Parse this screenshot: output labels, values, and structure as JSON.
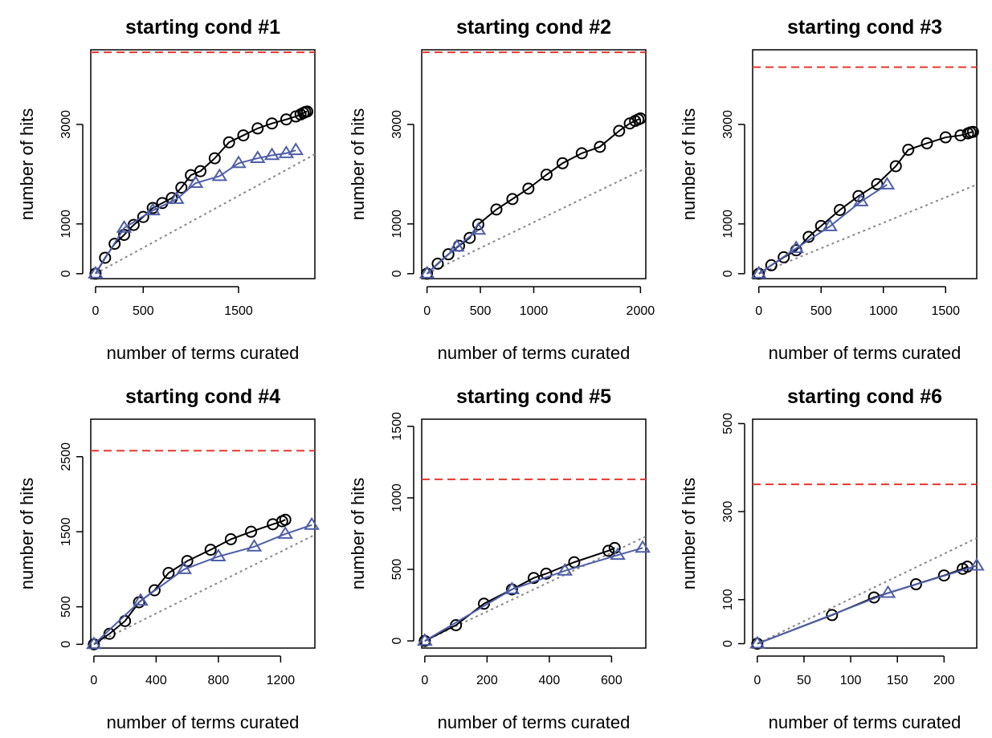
{
  "figure": {
    "colors": {
      "curated": "#000000",
      "alternate": "#4f5ea8",
      "reference": "#e8362f",
      "baseline": "#888888"
    },
    "marker_icons": {
      "curated": "circle-marker-icon",
      "alternate": "triangle-marker-icon"
    }
  },
  "chart_data": [
    {
      "type": "line",
      "title": "starting cond #1",
      "xlabel": "number of terms curated",
      "ylabel": "number of hits",
      "xlim": [
        -50,
        2300
      ],
      "ylim": [
        -100,
        4500
      ],
      "xticks": [
        0,
        500,
        1500
      ],
      "yticks": [
        0,
        1000,
        3000
      ],
      "reference_line": 4450,
      "baseline": {
        "x": [
          0,
          2300
        ],
        "y": [
          0,
          2400
        ]
      },
      "series": [
        {
          "marker": "circle",
          "x": [
            0,
            100,
            200,
            300,
            400,
            500,
            600,
            700,
            800,
            900,
            1000,
            1100,
            1250,
            1400,
            1550,
            1700,
            1850,
            2000,
            2100,
            2150,
            2180,
            2200,
            2220
          ],
          "y": [
            0,
            320,
            600,
            780,
            980,
            1140,
            1320,
            1420,
            1520,
            1730,
            1980,
            2060,
            2320,
            2640,
            2780,
            2920,
            3020,
            3100,
            3160,
            3200,
            3230,
            3250,
            3260
          ]
        },
        {
          "marker": "triangle",
          "x": [
            0,
            300,
            600,
            850,
            1050,
            1300,
            1500,
            1700,
            1850,
            2000,
            2100
          ],
          "y": [
            0,
            920,
            1270,
            1500,
            1820,
            1960,
            2220,
            2320,
            2380,
            2420,
            2480
          ]
        }
      ]
    },
    {
      "type": "line",
      "title": "starting cond #2",
      "xlabel": "number of terms curated",
      "ylabel": "number of hits",
      "xlim": [
        -50,
        2050
      ],
      "ylim": [
        -100,
        4500
      ],
      "xticks": [
        0,
        500,
        1000,
        2000
      ],
      "yticks": [
        0,
        1000,
        3000
      ],
      "reference_line": 4450,
      "baseline": {
        "x": [
          0,
          2050
        ],
        "y": [
          0,
          2120
        ]
      },
      "series": [
        {
          "marker": "circle",
          "x": [
            0,
            100,
            200,
            300,
            400,
            480,
            650,
            800,
            950,
            1120,
            1270,
            1450,
            1620,
            1800,
            1900,
            1950,
            1980,
            2000
          ],
          "y": [
            0,
            200,
            390,
            560,
            720,
            990,
            1290,
            1500,
            1710,
            1990,
            2220,
            2420,
            2550,
            2870,
            3020,
            3070,
            3100,
            3120
          ]
        },
        {
          "marker": "triangle",
          "x": [
            0,
            280,
            480
          ],
          "y": [
            0,
            540,
            880
          ]
        }
      ]
    },
    {
      "type": "line",
      "title": "starting cond #3",
      "xlabel": "number of terms curated",
      "ylabel": "number of hits",
      "xlim": [
        -50,
        1750
      ],
      "ylim": [
        -100,
        4500
      ],
      "xticks": [
        0,
        500,
        1000,
        1500
      ],
      "yticks": [
        0,
        1000,
        3000
      ],
      "reference_line": 4150,
      "baseline": {
        "x": [
          0,
          1750
        ],
        "y": [
          0,
          1790
        ]
      },
      "series": [
        {
          "marker": "circle",
          "x": [
            0,
            100,
            200,
            300,
            400,
            500,
            650,
            800,
            950,
            1100,
            1200,
            1350,
            1500,
            1620,
            1680,
            1700,
            1720
          ],
          "y": [
            0,
            170,
            330,
            470,
            740,
            960,
            1280,
            1560,
            1800,
            2160,
            2490,
            2620,
            2740,
            2780,
            2820,
            2840,
            2850
          ]
        },
        {
          "marker": "triangle",
          "x": [
            0,
            300,
            570,
            820,
            1030
          ],
          "y": [
            0,
            510,
            950,
            1450,
            1790
          ]
        }
      ]
    },
    {
      "type": "line",
      "title": "starting cond #4",
      "xlabel": "number of terms curated",
      "ylabel": "number of hits",
      "xlim": [
        -20,
        1420
      ],
      "ylim": [
        -50,
        3000
      ],
      "xticks": [
        0,
        400,
        800,
        1200
      ],
      "yticks": [
        0,
        500,
        1500,
        2500
      ],
      "reference_line": 2580,
      "baseline": {
        "x": [
          0,
          1420
        ],
        "y": [
          0,
          1460
        ]
      },
      "series": [
        {
          "marker": "circle",
          "x": [
            0,
            100,
            200,
            290,
            390,
            480,
            600,
            750,
            880,
            1010,
            1150,
            1210,
            1230
          ],
          "y": [
            0,
            140,
            310,
            560,
            720,
            950,
            1110,
            1260,
            1400,
            1500,
            1600,
            1640,
            1660
          ]
        },
        {
          "marker": "triangle",
          "x": [
            0,
            300,
            580,
            800,
            1030,
            1230,
            1400
          ],
          "y": [
            0,
            580,
            1000,
            1170,
            1300,
            1470,
            1590
          ]
        }
      ]
    },
    {
      "type": "line",
      "title": "starting cond #5",
      "xlabel": "number of terms curated",
      "ylabel": "number of hits",
      "xlim": [
        -10,
        710
      ],
      "ylim": [
        -50,
        1550
      ],
      "xticks": [
        0,
        200,
        400,
        600
      ],
      "yticks": [
        0,
        500,
        1000,
        1500
      ],
      "reference_line": 1130,
      "baseline": {
        "x": [
          0,
          710
        ],
        "y": [
          0,
          730
        ]
      },
      "series": [
        {
          "marker": "circle",
          "x": [
            0,
            100,
            190,
            280,
            350,
            390,
            480,
            590,
            610
          ],
          "y": [
            0,
            110,
            260,
            360,
            440,
            470,
            550,
            630,
            650
          ]
        },
        {
          "marker": "triangle",
          "x": [
            0,
            280,
            450,
            620,
            700
          ],
          "y": [
            0,
            360,
            490,
            600,
            650
          ]
        }
      ]
    },
    {
      "type": "line",
      "title": "starting cond #6",
      "xlabel": "number of terms curated",
      "ylabel": "number of hits",
      "xlim": [
        -5,
        235
      ],
      "ylim": [
        -10,
        510
      ],
      "xticks": [
        0,
        50,
        100,
        150,
        200
      ],
      "yticks": [
        0,
        100,
        300,
        500
      ],
      "reference_line": 362,
      "baseline": {
        "x": [
          0,
          235
        ],
        "y": [
          0,
          240
        ]
      },
      "series": [
        {
          "marker": "circle",
          "x": [
            0,
            80,
            125,
            170,
            200,
            220,
            225
          ],
          "y": [
            0,
            65,
            105,
            135,
            155,
            170,
            175
          ]
        },
        {
          "marker": "triangle",
          "x": [
            0,
            140,
            235
          ],
          "y": [
            0,
            115,
            177
          ]
        }
      ]
    }
  ]
}
